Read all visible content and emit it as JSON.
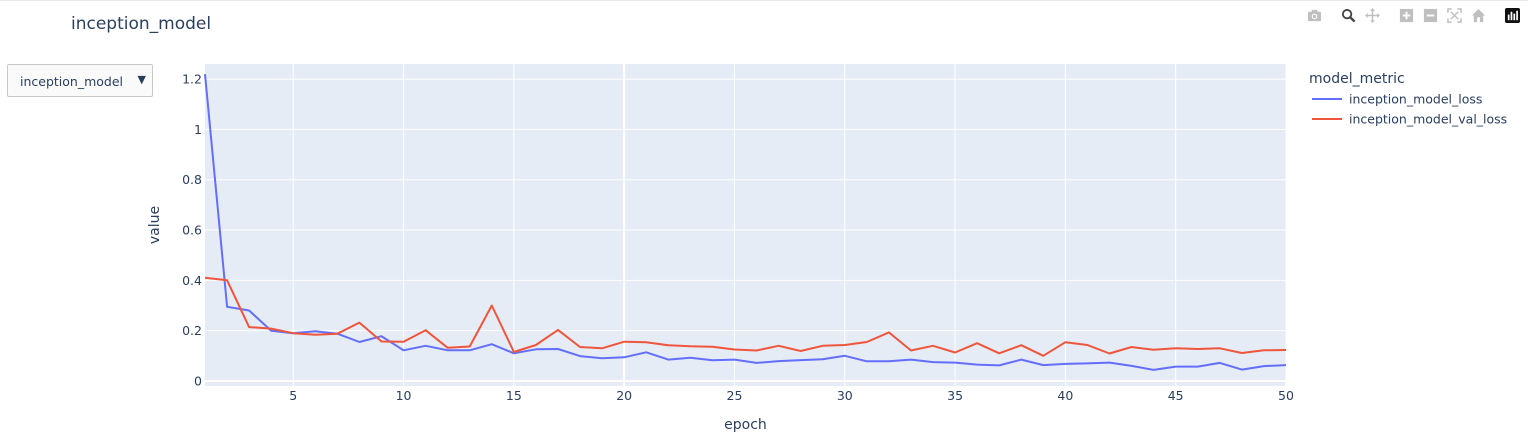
{
  "title": "inception_model",
  "dropdown": {
    "selected": "inception_model",
    "arrow": "▼"
  },
  "modebar": [
    "camera-icon",
    "zoom-icon",
    "pan-icon",
    "zoom-in-icon",
    "zoom-out-icon",
    "autoscale-icon",
    "reset-axes-icon",
    "plotly-logo-icon"
  ],
  "colors": {
    "plot_bg": "#e5ecf6",
    "grid": "#ffffff",
    "text": "#2a3f5f"
  },
  "chart_data": {
    "type": "line",
    "xlabel": "epoch",
    "ylabel": "value",
    "xlim": [
      1,
      50
    ],
    "ylim": [
      -0.02,
      1.26
    ],
    "xticks": [
      5,
      10,
      15,
      20,
      25,
      30,
      35,
      40,
      45,
      50
    ],
    "yticks": [
      0,
      0.2,
      0.4,
      0.6,
      0.8,
      1,
      1.2
    ],
    "ytick_labels": [
      "0",
      "0.2",
      "0.4",
      "0.6",
      "0.8",
      "1",
      "1.2"
    ],
    "grid": true,
    "legend": {
      "title": "model_metric",
      "position": "right"
    },
    "x": [
      1,
      2,
      3,
      4,
      5,
      6,
      7,
      8,
      9,
      10,
      11,
      12,
      13,
      14,
      15,
      16,
      17,
      18,
      19,
      20,
      21,
      22,
      23,
      24,
      25,
      26,
      27,
      28,
      29,
      30,
      31,
      32,
      33,
      34,
      35,
      36,
      37,
      38,
      39,
      40,
      41,
      42,
      43,
      44,
      45,
      46,
      47,
      48,
      49,
      50
    ],
    "series": [
      {
        "name": "inception_model_loss",
        "color": "#636efa",
        "values": [
          1.22,
          0.295,
          0.28,
          0.2,
          0.19,
          0.198,
          0.188,
          0.155,
          0.178,
          0.122,
          0.14,
          0.122,
          0.122,
          0.146,
          0.11,
          0.126,
          0.127,
          0.099,
          0.09,
          0.094,
          0.114,
          0.085,
          0.092,
          0.082,
          0.085,
          0.072,
          0.079,
          0.083,
          0.086,
          0.1,
          0.078,
          0.078,
          0.085,
          0.075,
          0.073,
          0.065,
          0.062,
          0.085,
          0.063,
          0.068,
          0.07,
          0.073,
          0.06,
          0.044,
          0.057,
          0.057,
          0.072,
          0.045,
          0.059,
          0.063
        ]
      },
      {
        "name": "inception_model_val_loss",
        "color": "#ef553b",
        "values": [
          0.41,
          0.4,
          0.214,
          0.208,
          0.19,
          0.184,
          0.188,
          0.232,
          0.157,
          0.156,
          0.202,
          0.132,
          0.137,
          0.3,
          0.115,
          0.143,
          0.203,
          0.135,
          0.13,
          0.156,
          0.154,
          0.142,
          0.138,
          0.136,
          0.125,
          0.121,
          0.14,
          0.119,
          0.14,
          0.143,
          0.155,
          0.193,
          0.121,
          0.14,
          0.113,
          0.15,
          0.11,
          0.142,
          0.1,
          0.154,
          0.143,
          0.109,
          0.135,
          0.124,
          0.13,
          0.127,
          0.13,
          0.111,
          0.122,
          0.123
        ]
      }
    ]
  }
}
